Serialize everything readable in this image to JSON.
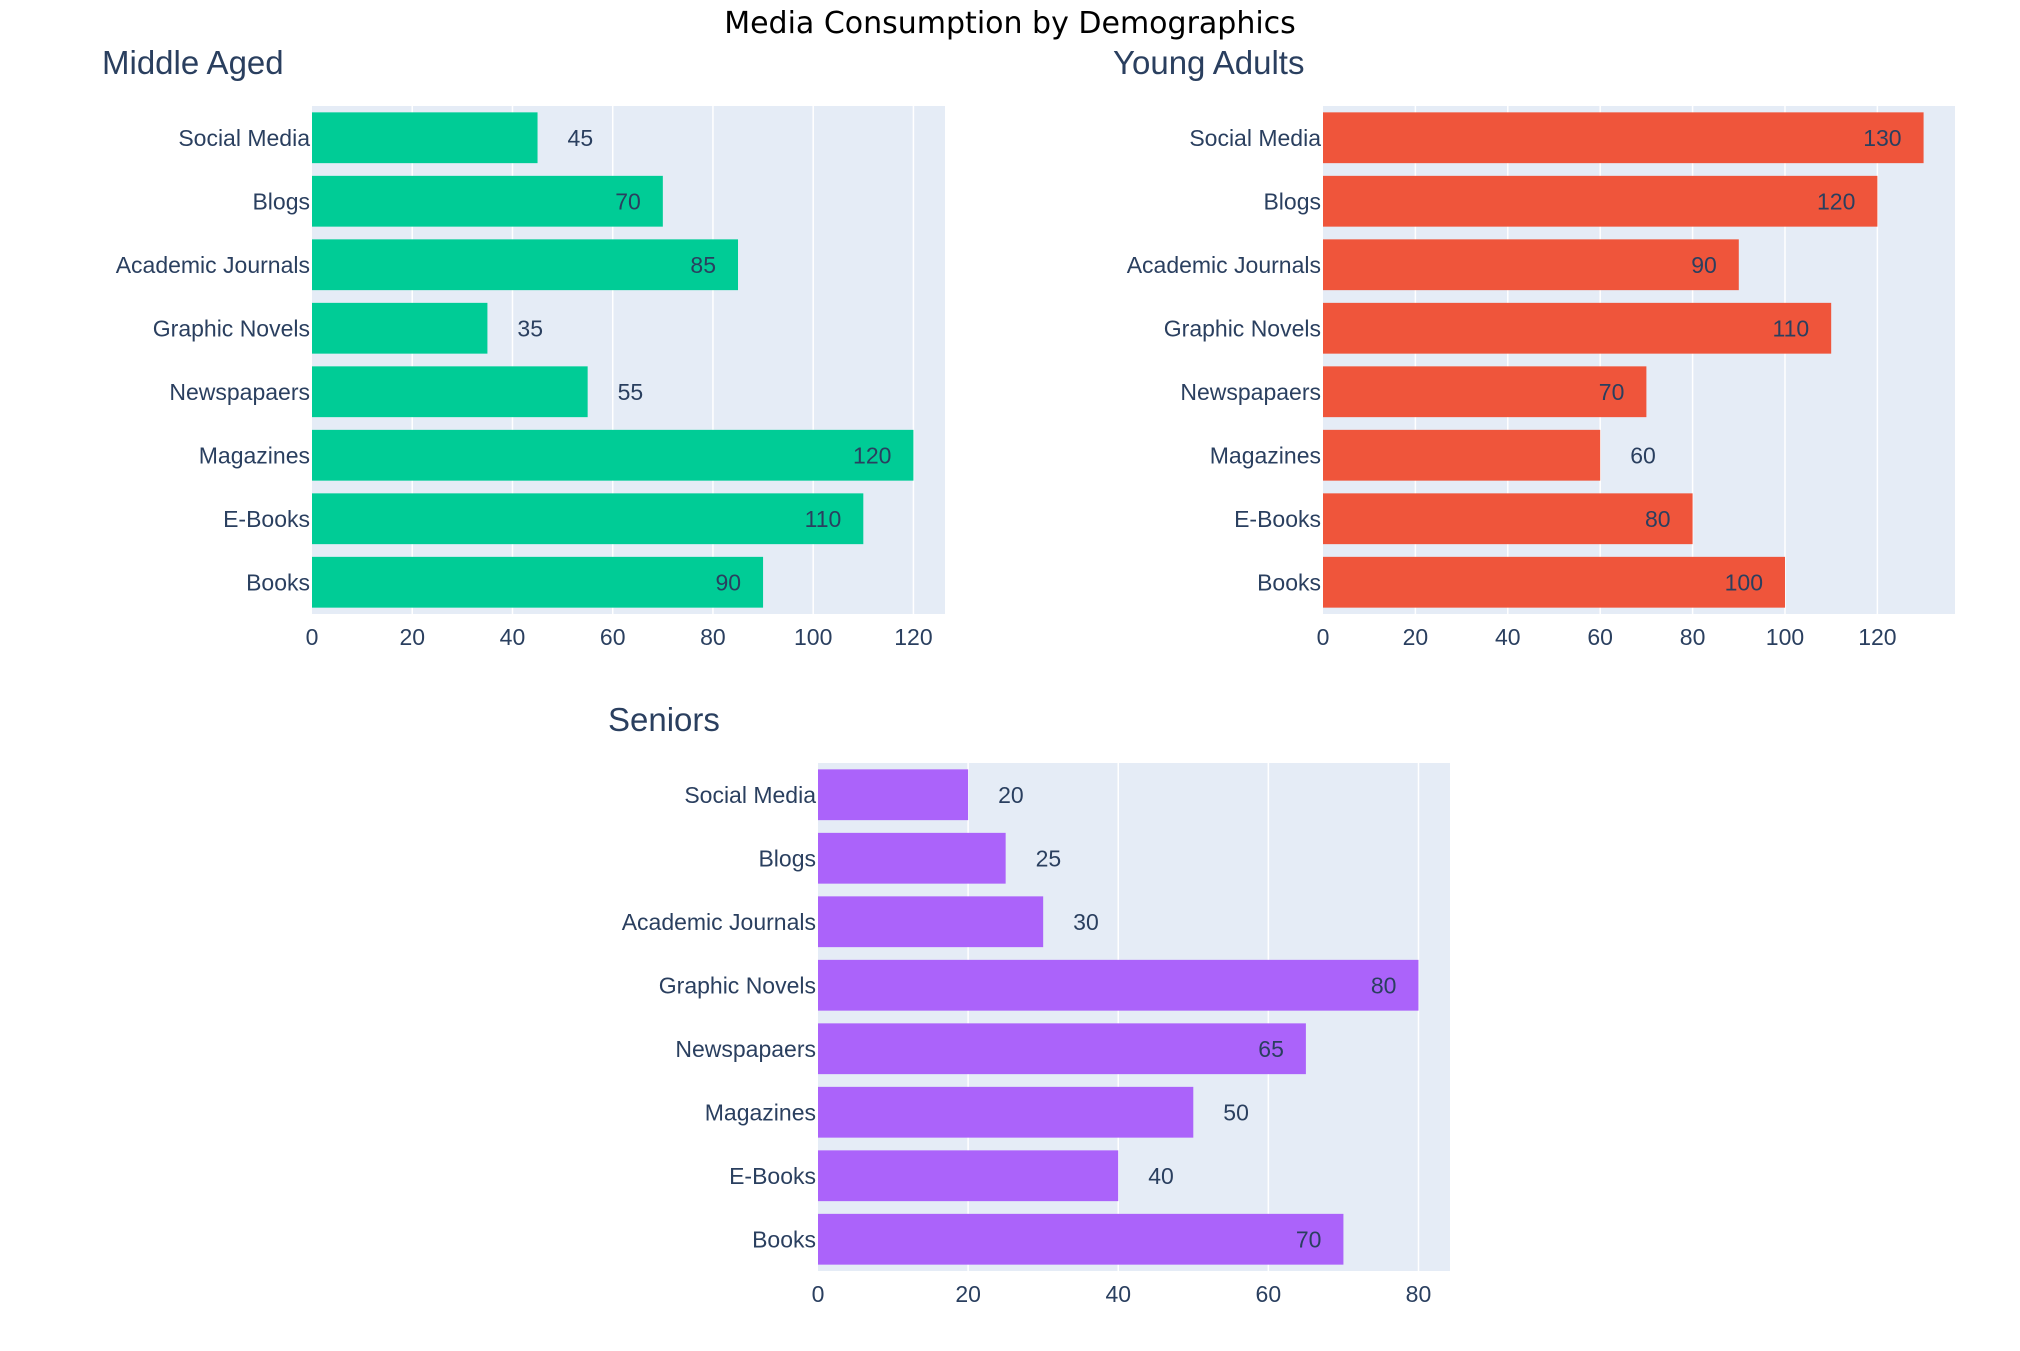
{
  "title": "Media Consumption by Demographics",
  "chart_data": [
    {
      "type": "bar",
      "orientation": "horizontal",
      "title": "Middle Aged",
      "color": "#00cc96",
      "categories": [
        "Books",
        "E-Books",
        "Magazines",
        "Newspapaers",
        "Graphic Novels",
        "Academic Journals",
        "Blogs",
        "Social Media"
      ],
      "values": [
        90,
        110,
        120,
        55,
        35,
        85,
        70,
        45
      ],
      "xlim": [
        0,
        126.3
      ],
      "xticks": [
        0,
        20,
        40,
        60,
        80,
        100,
        120
      ],
      "xlabel": "",
      "ylabel": "",
      "grid": true
    },
    {
      "type": "bar",
      "orientation": "horizontal",
      "title": "Young Adults",
      "color": "#ef553b",
      "categories": [
        "Books",
        "E-Books",
        "Magazines",
        "Newspapaers",
        "Graphic Novels",
        "Academic Journals",
        "Blogs",
        "Social Media"
      ],
      "values": [
        100,
        80,
        60,
        70,
        110,
        90,
        120,
        130
      ],
      "xlim": [
        0,
        136.8
      ],
      "xticks": [
        0,
        20,
        40,
        60,
        80,
        100,
        120
      ],
      "xlabel": "",
      "ylabel": "",
      "grid": true
    },
    {
      "type": "bar",
      "orientation": "horizontal",
      "title": "Seniors",
      "color": "#ab63fa",
      "categories": [
        "Books",
        "E-Books",
        "Magazines",
        "Newspapaers",
        "Graphic Novels",
        "Academic Journals",
        "Blogs",
        "Social Media"
      ],
      "values": [
        70,
        40,
        50,
        65,
        80,
        30,
        25,
        20
      ],
      "xlim": [
        0,
        84.2
      ],
      "xticks": [
        0,
        20,
        40,
        60,
        80
      ],
      "xlabel": "",
      "ylabel": "",
      "grid": true
    }
  ]
}
